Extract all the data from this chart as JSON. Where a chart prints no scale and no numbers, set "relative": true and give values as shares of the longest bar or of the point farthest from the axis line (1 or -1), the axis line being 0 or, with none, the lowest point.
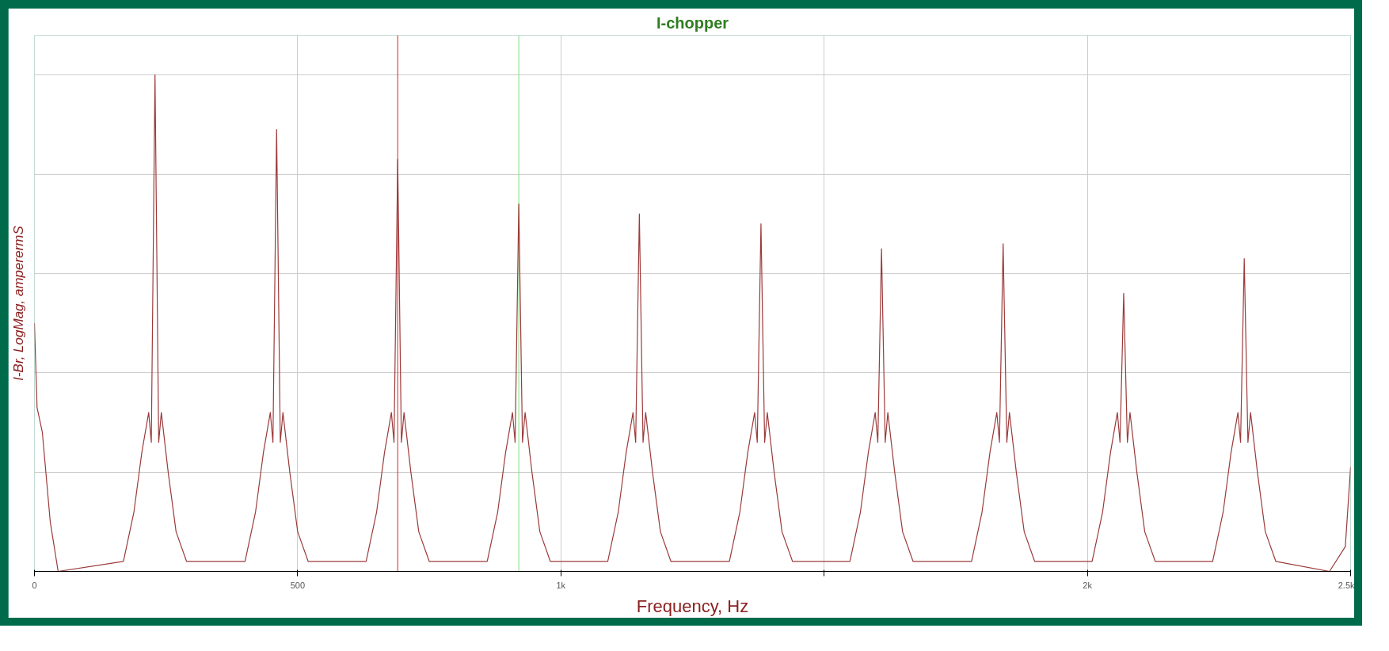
{
  "chart_data": {
    "type": "line",
    "title": "I-chopper",
    "xlabel": "Frequency, Hz",
    "ylabel": "I-Br, LogMag, amperermS",
    "relative": true,
    "grid": true,
    "marker": "none",
    "line_style": "solid",
    "xlim": [
      0,
      2500
    ],
    "xticks": [
      0,
      500,
      {
        "value": 1000,
        "label": "1k"
      },
      {
        "value": 1500,
        "label": null
      },
      {
        "value": 2000,
        "label": "2k"
      },
      {
        "value": 2500,
        "label": "2.5k"
      }
    ],
    "ref_lines": [
      {
        "axis": "x",
        "value": 690,
        "color": "#e02020"
      },
      {
        "axis": "x",
        "value": 920,
        "color": "#7ee07e"
      }
    ],
    "series": [
      {
        "color": "#9b3a3a",
        "x": [
          0,
          5,
          15,
          30,
          45,
          169,
          189,
          204,
          217,
          222,
          229,
          236,
          241,
          254,
          269,
          289,
          400,
          420,
          435,
          448,
          453,
          460,
          467,
          472,
          485,
          500,
          520,
          630,
          650,
          665,
          678,
          683,
          690,
          697,
          702,
          715,
          730,
          750,
          860,
          880,
          895,
          908,
          913,
          920,
          927,
          932,
          945,
          960,
          980,
          1089,
          1109,
          1124,
          1137,
          1142,
          1149,
          1156,
          1161,
          1174,
          1189,
          1209,
          1320,
          1340,
          1355,
          1368,
          1373,
          1380,
          1387,
          1392,
          1405,
          1420,
          1440,
          1549,
          1569,
          1584,
          1597,
          1602,
          1609,
          1616,
          1621,
          1634,
          1649,
          1669,
          1780,
          1800,
          1815,
          1828,
          1833,
          1840,
          1847,
          1852,
          1865,
          1880,
          1900,
          2009,
          2029,
          2044,
          2057,
          2062,
          2069,
          2076,
          2081,
          2094,
          2109,
          2129,
          2238,
          2258,
          2273,
          2286,
          2291,
          2298,
          2305,
          2310,
          2323,
          2338,
          2358,
          2460,
          2490,
          2500
        ],
        "values": [
          0.5,
          0.33,
          0.28,
          0.1,
          0,
          0.02,
          0.12,
          0.24,
          0.32,
          0.26,
          1.0,
          0.26,
          0.32,
          0.2,
          0.08,
          0.02,
          0.02,
          0.12,
          0.24,
          0.32,
          0.26,
          0.89,
          0.26,
          0.32,
          0.2,
          0.08,
          0.02,
          0.02,
          0.12,
          0.24,
          0.32,
          0.26,
          0.83,
          0.26,
          0.32,
          0.2,
          0.08,
          0.02,
          0.02,
          0.12,
          0.24,
          0.32,
          0.26,
          0.74,
          0.26,
          0.32,
          0.2,
          0.08,
          0.02,
          0.02,
          0.12,
          0.24,
          0.32,
          0.26,
          0.72,
          0.26,
          0.32,
          0.2,
          0.08,
          0.02,
          0.02,
          0.12,
          0.24,
          0.32,
          0.26,
          0.7,
          0.26,
          0.32,
          0.2,
          0.08,
          0.02,
          0.02,
          0.12,
          0.24,
          0.32,
          0.26,
          0.65,
          0.26,
          0.32,
          0.2,
          0.08,
          0.02,
          0.02,
          0.12,
          0.24,
          0.32,
          0.26,
          0.66,
          0.26,
          0.32,
          0.2,
          0.08,
          0.02,
          0.02,
          0.12,
          0.24,
          0.32,
          0.26,
          0.56,
          0.26,
          0.32,
          0.2,
          0.08,
          0.02,
          0.02,
          0.12,
          0.24,
          0.32,
          0.26,
          0.63,
          0.26,
          0.32,
          0.2,
          0.08,
          0.02,
          0,
          0.05,
          0.21
        ]
      }
    ]
  }
}
